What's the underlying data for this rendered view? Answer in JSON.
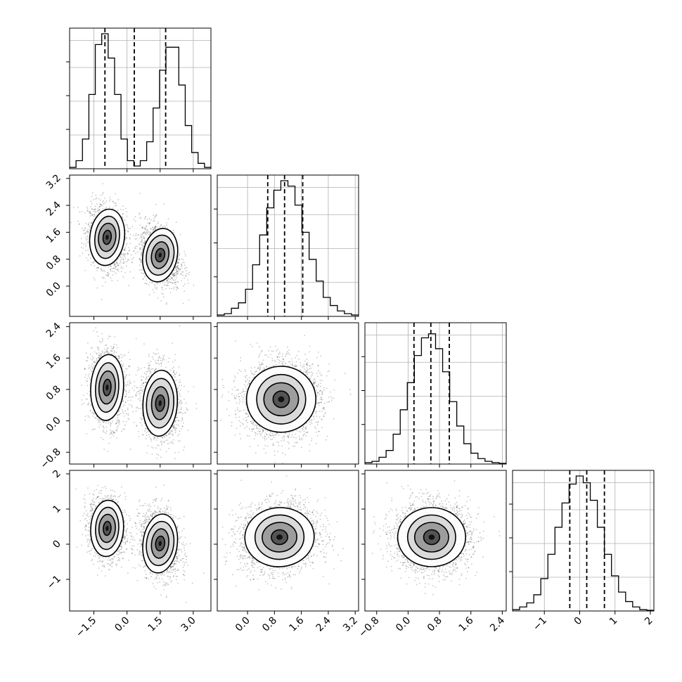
{
  "chart_data": {
    "type": "scatter",
    "subtype": "corner-plot",
    "n_params": 4,
    "title": "",
    "legend": "none",
    "grid": true,
    "ranges": [
      [
        -2.6,
        3.8
      ],
      [
        -0.9,
        3.3
      ],
      [
        -1.1,
        2.5
      ],
      [
        -1.9,
        2.1
      ]
    ],
    "ticks": [
      [
        "-1.5",
        "0.0",
        "1.5",
        "3.0"
      ],
      [
        "0.0",
        "0.8",
        "1.6",
        "2.4",
        "3.2"
      ],
      [
        "-0.8",
        "0.0",
        "0.8",
        "1.6",
        "2.4"
      ],
      [
        "-1",
        "0",
        "1",
        "2"
      ]
    ],
    "tick_values": [
      [
        -1.5,
        0.0,
        1.5,
        3.0
      ],
      [
        0.0,
        0.8,
        1.6,
        2.4,
        3.2
      ],
      [
        -0.8,
        0.0,
        0.8,
        1.6,
        2.4
      ],
      [
        -1,
        0,
        1,
        2
      ]
    ],
    "quantiles": [
      [
        -1.0,
        0.33,
        1.75
      ],
      [
        0.6,
        1.1,
        1.64
      ],
      [
        0.15,
        0.58,
        1.05
      ],
      [
        -0.28,
        0.2,
        0.7
      ]
    ],
    "histograms": [
      {
        "param": 0,
        "counts": [
          0.01,
          0.06,
          0.22,
          0.55,
          0.92,
          1.0,
          0.82,
          0.55,
          0.22,
          0.06,
          0.02,
          0.06,
          0.2,
          0.45,
          0.73,
          0.9,
          0.9,
          0.62,
          0.32,
          0.12,
          0.04,
          0.01
        ]
      },
      {
        "param": 1,
        "counts": [
          0.01,
          0.02,
          0.06,
          0.1,
          0.2,
          0.38,
          0.6,
          0.8,
          0.93,
          1.0,
          0.96,
          0.82,
          0.62,
          0.42,
          0.26,
          0.14,
          0.08,
          0.04,
          0.02,
          0.01
        ]
      },
      {
        "param": 2,
        "counts": [
          0.01,
          0.02,
          0.05,
          0.1,
          0.22,
          0.4,
          0.6,
          0.8,
          0.93,
          0.96,
          0.85,
          0.68,
          0.46,
          0.28,
          0.15,
          0.08,
          0.04,
          0.02,
          0.01,
          0.005
        ]
      },
      {
        "param": 3,
        "counts": [
          0.01,
          0.03,
          0.06,
          0.12,
          0.24,
          0.42,
          0.62,
          0.8,
          0.94,
          1.0,
          0.95,
          0.82,
          0.62,
          0.42,
          0.26,
          0.14,
          0.07,
          0.03,
          0.01,
          0.005
        ]
      }
    ],
    "scatter_panels": [
      {
        "row": 1,
        "col": 0,
        "clusters": [
          {
            "cx": -0.9,
            "cy": 1.45,
            "sx": 0.38,
            "sy": 0.42,
            "rho": -0.2
          },
          {
            "cx": 1.5,
            "cy": 0.92,
            "sx": 0.4,
            "sy": 0.4,
            "rho": -0.3
          }
        ]
      },
      {
        "row": 2,
        "col": 0,
        "clusters": [
          {
            "cx": -0.9,
            "cy": 0.85,
            "sx": 0.36,
            "sy": 0.42,
            "rho": -0.1
          },
          {
            "cx": 1.5,
            "cy": 0.45,
            "sx": 0.4,
            "sy": 0.42,
            "rho": -0.1
          }
        ]
      },
      {
        "row": 3,
        "col": 0,
        "clusters": [
          {
            "cx": -0.9,
            "cy": 0.45,
            "sx": 0.36,
            "sy": 0.4,
            "rho": -0.1
          },
          {
            "cx": 1.5,
            "cy": 0.02,
            "sx": 0.4,
            "sy": 0.42,
            "rho": -0.2
          }
        ]
      },
      {
        "row": 2,
        "col": 1,
        "clusters": [
          {
            "cx": 1.0,
            "cy": 0.55,
            "sx": 0.5,
            "sy": 0.42,
            "rho": 0.05
          }
        ]
      },
      {
        "row": 3,
        "col": 1,
        "clusters": [
          {
            "cx": 0.95,
            "cy": 0.2,
            "sx": 0.5,
            "sy": 0.42,
            "rho": 0.1
          }
        ]
      },
      {
        "row": 3,
        "col": 2,
        "clusters": [
          {
            "cx": 0.6,
            "cy": 0.2,
            "sx": 0.42,
            "sy": 0.42,
            "rho": 0.0
          }
        ]
      }
    ]
  }
}
